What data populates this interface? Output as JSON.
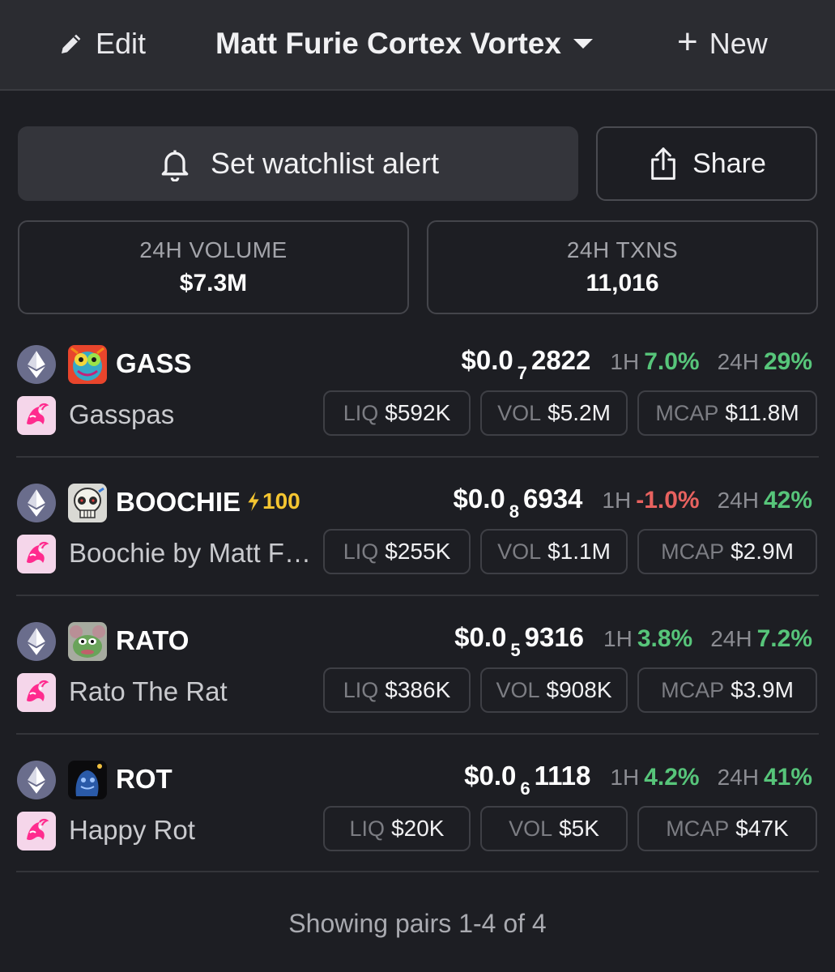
{
  "topbar": {
    "edit_label": "Edit",
    "title": "Matt Furie Cortex Vortex",
    "new_label": "New"
  },
  "actions": {
    "alert_label": "Set watchlist alert",
    "share_label": "Share"
  },
  "stats": {
    "volume_label": "24H VOLUME",
    "volume_value": "$7.3M",
    "txns_label": "24H TXNS",
    "txns_value": "11,016"
  },
  "pairs": [
    {
      "symbol": "GASS",
      "name": "Gasspas",
      "boost": "",
      "price_prefix": "$0.0",
      "price_zeros": "7",
      "price_digits": "2822",
      "h1_label": "1H",
      "h1": "7.0%",
      "h1_dir": "pos",
      "h24_label": "24H",
      "h24": "29%",
      "h24_dir": "pos",
      "liq_label": "LIQ",
      "liq": "$592K",
      "vol_label": "VOL",
      "vol": "$5.2M",
      "mcap_label": "MCAP",
      "mcap": "$11.8M"
    },
    {
      "symbol": "BOOCHIE",
      "name": "Boochie by Matt Furie",
      "boost": "100",
      "price_prefix": "$0.0",
      "price_zeros": "8",
      "price_digits": "6934",
      "h1_label": "1H",
      "h1": "-1.0%",
      "h1_dir": "neg",
      "h24_label": "24H",
      "h24": "42%",
      "h24_dir": "pos",
      "liq_label": "LIQ",
      "liq": "$255K",
      "vol_label": "VOL",
      "vol": "$1.1M",
      "mcap_label": "MCAP",
      "mcap": "$2.9M"
    },
    {
      "symbol": "RATO",
      "name": "Rato The Rat",
      "boost": "",
      "price_prefix": "$0.0",
      "price_zeros": "5",
      "price_digits": "9316",
      "h1_label": "1H",
      "h1": "3.8%",
      "h1_dir": "pos",
      "h24_label": "24H",
      "h24": "7.2%",
      "h24_dir": "pos",
      "liq_label": "LIQ",
      "liq": "$386K",
      "vol_label": "VOL",
      "vol": "$908K",
      "mcap_label": "MCAP",
      "mcap": "$3.9M"
    },
    {
      "symbol": "ROT",
      "name": "Happy Rot",
      "boost": "",
      "price_prefix": "$0.0",
      "price_zeros": "6",
      "price_digits": "1118",
      "h1_label": "1H",
      "h1": "4.2%",
      "h1_dir": "pos",
      "h24_label": "24H",
      "h24": "41%",
      "h24_dir": "pos",
      "liq_label": "LIQ",
      "liq": "$20K",
      "vol_label": "VOL",
      "vol": "$5K",
      "mcap_label": "MCAP",
      "mcap": "$47K"
    }
  ],
  "footer": {
    "text": "Showing pairs 1-4 of 4"
  },
  "colors": {
    "background": "#1d1e23",
    "topbar": "#2b2c31",
    "positive": "#57c57a",
    "negative": "#e8625f",
    "boost": "#f4c531",
    "chain_icon": "#6a6d8c",
    "dex_icon": "#f5d6ea"
  },
  "icons": {
    "edit": "pencil-icon",
    "title_dropdown": "caret-down-icon",
    "new": "plus-icon",
    "alert": "bell-icon",
    "share": "share-icon",
    "chain": "ethereum-icon",
    "dex": "uniswap-icon",
    "boost": "lightning-icon"
  }
}
